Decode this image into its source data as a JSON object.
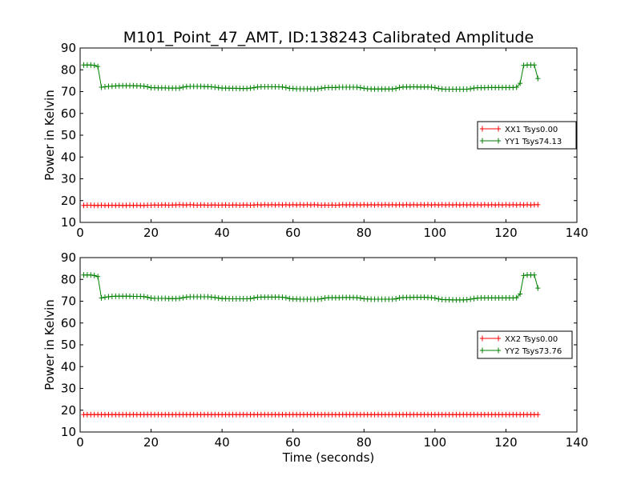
{
  "figure": {
    "title": "M101_Point_47_AMT, ID:138243 Calibrated Amplitude"
  },
  "chart_data": [
    {
      "type": "line",
      "ylabel": "Power in Kelvin",
      "xlabel": "",
      "xlim": [
        0,
        140
      ],
      "ylim": [
        10,
        90
      ],
      "xticks": [
        "0",
        "20",
        "40",
        "60",
        "80",
        "100",
        "120",
        "140"
      ],
      "yticks": [
        "10",
        "20",
        "30",
        "40",
        "50",
        "60",
        "70",
        "80",
        "90"
      ],
      "legend_position": "center-right",
      "series": [
        {
          "name": "XX1 Tsys0.00",
          "color": "#ff0000",
          "marker": "plus",
          "x": [
            1,
            2,
            3,
            4,
            5,
            6,
            7,
            8,
            9,
            10,
            11,
            12,
            13,
            14,
            15,
            16,
            17,
            18,
            19,
            20,
            21,
            22,
            23,
            24,
            25,
            26,
            27,
            28,
            29,
            30,
            31,
            32,
            33,
            34,
            35,
            36,
            37,
            38,
            39,
            40,
            41,
            42,
            43,
            44,
            45,
            46,
            47,
            48,
            49,
            50,
            51,
            52,
            53,
            54,
            55,
            56,
            57,
            58,
            59,
            60,
            61,
            62,
            63,
            64,
            65,
            66,
            67,
            68,
            69,
            70,
            71,
            72,
            73,
            74,
            75,
            76,
            77,
            78,
            79,
            80,
            81,
            82,
            83,
            84,
            85,
            86,
            87,
            88,
            89,
            90,
            91,
            92,
            93,
            94,
            95,
            96,
            97,
            98,
            99,
            100,
            101,
            102,
            103,
            104,
            105,
            106,
            107,
            108,
            109,
            110,
            111,
            112,
            113,
            114,
            115,
            116,
            117,
            118,
            119,
            120,
            121,
            122,
            123,
            124,
            125,
            126,
            127,
            128,
            129
          ],
          "y": [
            17.8,
            17.9,
            17.9,
            17.8,
            17.8,
            17.9,
            17.8,
            17.8,
            17.9,
            17.8,
            17.9,
            17.8,
            17.8,
            17.9,
            17.8,
            17.9,
            17.8,
            17.8,
            17.9,
            17.9,
            18.0,
            17.9,
            18.0,
            18.0,
            17.9,
            18.0,
            18.0,
            18.1,
            18.0,
            18.0,
            18.1,
            18.0,
            17.9,
            18.0,
            18.0,
            17.9,
            18.0,
            18.0,
            17.9,
            18.0,
            18.0,
            17.9,
            18.0,
            18.0,
            17.9,
            18.0,
            18.0,
            17.9,
            18.0,
            18.1,
            18.0,
            18.1,
            18.0,
            18.1,
            18.0,
            18.1,
            18.0,
            18.1,
            18.0,
            18.1,
            18.0,
            18.1,
            18.0,
            18.1,
            18.0,
            18.1,
            18.0,
            17.9,
            18.0,
            17.9,
            18.0,
            17.9,
            18.0,
            18.1,
            18.0,
            18.1,
            18.0,
            18.1,
            18.0,
            18.1,
            18.0,
            18.1,
            18.0,
            18.1,
            18.0,
            18.1,
            18.0,
            18.1,
            18.0,
            18.1,
            18.0,
            18.1,
            18.0,
            18.1,
            18.0,
            18.1,
            18.0,
            18.1,
            18.0,
            18.1,
            18.0,
            18.1,
            18.0,
            18.1,
            18.0,
            18.1,
            18.0,
            18.1,
            18.0,
            18.1,
            18.0,
            18.1,
            18.0,
            18.1,
            18.0,
            18.1,
            18.0,
            18.1,
            18.0,
            18.1,
            18.0,
            18.1,
            18.0,
            18.1,
            18.0,
            18.1,
            18.0,
            18.1,
            18.1
          ]
        },
        {
          "name": "YY1 Tsys74.13",
          "color": "#008000",
          "marker": "plus",
          "x": [
            1,
            2,
            3,
            4,
            5,
            6,
            7,
            8,
            9,
            10,
            11,
            12,
            13,
            14,
            15,
            16,
            17,
            18,
            19,
            20,
            21,
            22,
            23,
            24,
            25,
            26,
            27,
            28,
            29,
            30,
            31,
            32,
            33,
            34,
            35,
            36,
            37,
            38,
            39,
            40,
            41,
            42,
            43,
            44,
            45,
            46,
            47,
            48,
            49,
            50,
            51,
            52,
            53,
            54,
            55,
            56,
            57,
            58,
            59,
            60,
            61,
            62,
            63,
            64,
            65,
            66,
            67,
            68,
            69,
            70,
            71,
            72,
            73,
            74,
            75,
            76,
            77,
            78,
            79,
            80,
            81,
            82,
            83,
            84,
            85,
            86,
            87,
            88,
            89,
            90,
            91,
            92,
            93,
            94,
            95,
            96,
            97,
            98,
            99,
            100,
            101,
            102,
            103,
            104,
            105,
            106,
            107,
            108,
            109,
            110,
            111,
            112,
            113,
            114,
            115,
            116,
            117,
            118,
            119,
            120,
            121,
            122,
            123,
            124,
            125,
            126,
            127,
            128,
            129
          ],
          "y": [
            82.2,
            82.2,
            82.2,
            82.0,
            81.5,
            72.0,
            72.2,
            72.4,
            72.5,
            72.6,
            72.7,
            72.7,
            72.7,
            72.7,
            72.7,
            72.6,
            72.6,
            72.5,
            72.2,
            71.8,
            71.8,
            71.7,
            71.7,
            71.7,
            71.6,
            71.6,
            71.6,
            71.6,
            72.0,
            72.3,
            72.4,
            72.4,
            72.4,
            72.4,
            72.3,
            72.3,
            72.2,
            72.0,
            71.8,
            71.6,
            71.6,
            71.5,
            71.5,
            71.5,
            71.4,
            71.4,
            71.4,
            71.6,
            71.8,
            72.1,
            72.2,
            72.2,
            72.2,
            72.2,
            72.2,
            72.2,
            72.1,
            71.9,
            71.5,
            71.4,
            71.3,
            71.3,
            71.3,
            71.3,
            71.2,
            71.2,
            71.3,
            71.5,
            71.8,
            71.9,
            71.9,
            71.9,
            72.0,
            72.0,
            72.0,
            72.0,
            72.0,
            72.0,
            71.8,
            71.5,
            71.3,
            71.2,
            71.2,
            71.2,
            71.2,
            71.2,
            71.2,
            71.2,
            71.4,
            71.9,
            72.1,
            72.1,
            72.1,
            72.2,
            72.1,
            72.1,
            72.1,
            72.1,
            72.0,
            71.8,
            71.4,
            71.2,
            71.1,
            71.1,
            71.1,
            71.1,
            71.1,
            71.1,
            71.1,
            71.3,
            71.6,
            71.8,
            71.8,
            71.8,
            71.9,
            71.9,
            71.9,
            71.9,
            71.9,
            71.9,
            71.9,
            71.9,
            72.0,
            73.8,
            82.0,
            82.2,
            82.2,
            82.2,
            76.0
          ]
        }
      ]
    },
    {
      "type": "line",
      "ylabel": "Power in Kelvin",
      "xlabel": "Time (seconds)",
      "xlim": [
        0,
        140
      ],
      "ylim": [
        10,
        90
      ],
      "xticks": [
        "0",
        "20",
        "40",
        "60",
        "80",
        "100",
        "120",
        "140"
      ],
      "yticks": [
        "10",
        "20",
        "30",
        "40",
        "50",
        "60",
        "70",
        "80",
        "90"
      ],
      "legend_position": "center-right",
      "series": [
        {
          "name": "XX2 Tsys0.00",
          "color": "#ff0000",
          "marker": "plus",
          "x": [
            1,
            2,
            3,
            4,
            5,
            6,
            7,
            8,
            9,
            10,
            11,
            12,
            13,
            14,
            15,
            16,
            17,
            18,
            19,
            20,
            21,
            22,
            23,
            24,
            25,
            26,
            27,
            28,
            29,
            30,
            31,
            32,
            33,
            34,
            35,
            36,
            37,
            38,
            39,
            40,
            41,
            42,
            43,
            44,
            45,
            46,
            47,
            48,
            49,
            50,
            51,
            52,
            53,
            54,
            55,
            56,
            57,
            58,
            59,
            60,
            61,
            62,
            63,
            64,
            65,
            66,
            67,
            68,
            69,
            70,
            71,
            72,
            73,
            74,
            75,
            76,
            77,
            78,
            79,
            80,
            81,
            82,
            83,
            84,
            85,
            86,
            87,
            88,
            89,
            90,
            91,
            92,
            93,
            94,
            95,
            96,
            97,
            98,
            99,
            100,
            101,
            102,
            103,
            104,
            105,
            106,
            107,
            108,
            109,
            110,
            111,
            112,
            113,
            114,
            115,
            116,
            117,
            118,
            119,
            120,
            121,
            122,
            123,
            124,
            125,
            126,
            127,
            128,
            129
          ],
          "y": [
            18.0,
            18.0,
            18.0,
            18.0,
            18.0,
            18.0,
            18.0,
            18.0,
            18.0,
            18.0,
            18.0,
            18.0,
            18.0,
            18.0,
            18.0,
            18.0,
            18.0,
            18.0,
            18.0,
            18.0,
            18.0,
            18.0,
            18.0,
            18.0,
            18.0,
            18.0,
            18.0,
            18.0,
            18.0,
            18.0,
            18.0,
            18.0,
            18.0,
            18.0,
            18.0,
            18.0,
            18.0,
            18.0,
            18.0,
            18.0,
            18.0,
            18.0,
            18.0,
            18.0,
            18.0,
            18.0,
            18.0,
            18.0,
            18.0,
            18.0,
            18.0,
            18.0,
            18.0,
            18.0,
            18.0,
            18.0,
            18.0,
            18.0,
            18.0,
            18.0,
            18.0,
            18.0,
            18.0,
            18.0,
            18.0,
            18.0,
            18.0,
            18.0,
            18.0,
            18.0,
            18.0,
            18.0,
            18.0,
            18.0,
            18.0,
            18.0,
            18.0,
            18.0,
            18.0,
            18.0,
            18.0,
            18.0,
            18.0,
            18.0,
            18.0,
            18.0,
            18.0,
            18.0,
            18.0,
            18.0,
            18.0,
            18.0,
            18.0,
            18.0,
            18.0,
            18.0,
            18.0,
            18.0,
            18.0,
            18.0,
            18.0,
            18.0,
            18.0,
            18.0,
            18.0,
            18.0,
            18.0,
            18.0,
            18.0,
            18.0,
            18.0,
            18.0,
            18.0,
            18.0,
            18.0,
            18.0,
            18.0,
            18.0,
            18.0,
            18.0,
            18.0,
            18.0,
            18.0,
            18.0,
            18.0,
            18.0,
            18.0,
            18.0,
            18.0
          ]
        },
        {
          "name": "YY2 Tsys73.76",
          "color": "#008000",
          "marker": "plus",
          "x": [
            1,
            2,
            3,
            4,
            5,
            6,
            7,
            8,
            9,
            10,
            11,
            12,
            13,
            14,
            15,
            16,
            17,
            18,
            19,
            20,
            21,
            22,
            23,
            24,
            25,
            26,
            27,
            28,
            29,
            30,
            31,
            32,
            33,
            34,
            35,
            36,
            37,
            38,
            39,
            40,
            41,
            42,
            43,
            44,
            45,
            46,
            47,
            48,
            49,
            50,
            51,
            52,
            53,
            54,
            55,
            56,
            57,
            58,
            59,
            60,
            61,
            62,
            63,
            64,
            65,
            66,
            67,
            68,
            69,
            70,
            71,
            72,
            73,
            74,
            75,
            76,
            77,
            78,
            79,
            80,
            81,
            82,
            83,
            84,
            85,
            86,
            87,
            88,
            89,
            90,
            91,
            92,
            93,
            94,
            95,
            96,
            97,
            98,
            99,
            100,
            101,
            102,
            103,
            104,
            105,
            106,
            107,
            108,
            109,
            110,
            111,
            112,
            113,
            114,
            115,
            116,
            117,
            118,
            119,
            120,
            121,
            122,
            123,
            124,
            125,
            126,
            127,
            128,
            129
          ],
          "y": [
            82.0,
            82.0,
            82.0,
            81.8,
            81.3,
            71.5,
            71.8,
            72.0,
            72.2,
            72.3,
            72.3,
            72.3,
            72.3,
            72.3,
            72.2,
            72.2,
            72.2,
            72.1,
            71.8,
            71.4,
            71.3,
            71.3,
            71.3,
            71.3,
            71.2,
            71.2,
            71.2,
            71.3,
            71.6,
            71.9,
            72.0,
            72.0,
            72.0,
            72.0,
            72.0,
            72.0,
            71.9,
            71.7,
            71.4,
            71.2,
            71.2,
            71.1,
            71.1,
            71.1,
            71.1,
            71.1,
            71.1,
            71.2,
            71.5,
            71.8,
            71.9,
            71.9,
            71.9,
            71.9,
            71.9,
            71.9,
            71.8,
            71.6,
            71.2,
            71.0,
            71.0,
            70.9,
            70.9,
            70.9,
            70.9,
            70.9,
            70.9,
            71.1,
            71.4,
            71.6,
            71.6,
            71.6,
            71.6,
            71.7,
            71.7,
            71.7,
            71.7,
            71.6,
            71.4,
            71.1,
            71.0,
            70.9,
            70.9,
            70.9,
            70.9,
            70.9,
            70.9,
            70.9,
            71.1,
            71.5,
            71.7,
            71.7,
            71.7,
            71.8,
            71.8,
            71.8,
            71.8,
            71.7,
            71.6,
            71.4,
            71.0,
            70.8,
            70.7,
            70.7,
            70.6,
            70.6,
            70.6,
            70.6,
            70.7,
            70.9,
            71.2,
            71.4,
            71.5,
            71.5,
            71.5,
            71.5,
            71.5,
            71.5,
            71.5,
            71.5,
            71.5,
            71.5,
            71.6,
            73.3,
            81.8,
            82.0,
            82.0,
            82.0,
            76.0
          ]
        }
      ]
    }
  ]
}
